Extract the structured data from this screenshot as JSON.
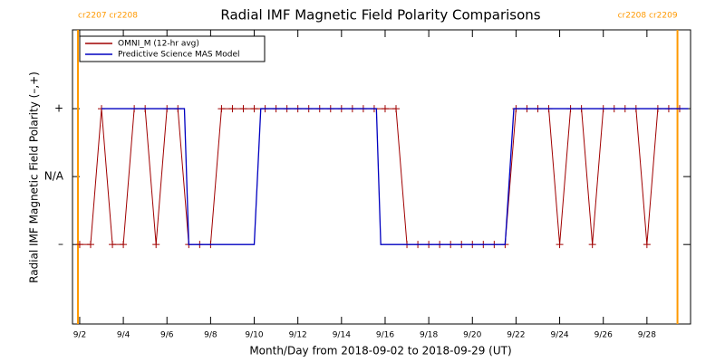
{
  "chart_data": {
    "type": "line",
    "title": "Radial IMF Magnetic Field Polarity Comparisons",
    "x_label": "Month/Day from 2018-09-02 to 2018-09-29 (UT)",
    "y_label": "Radial IMF Magnetic Field Polarity (–,+)",
    "xlim": [
      1.67,
      30
    ],
    "ylim": [
      -2.17,
      2.16
    ],
    "xticks": [
      {
        "value": 2,
        "label": "9/2"
      },
      {
        "value": 4,
        "label": "9/4"
      },
      {
        "value": 6,
        "label": "9/6"
      },
      {
        "value": 8,
        "label": "9/8"
      },
      {
        "value": 10,
        "label": "9/10"
      },
      {
        "value": 12,
        "label": "9/12"
      },
      {
        "value": 14,
        "label": "9/14"
      },
      {
        "value": 16,
        "label": "9/16"
      },
      {
        "value": 18,
        "label": "9/18"
      },
      {
        "value": 20,
        "label": "9/20"
      },
      {
        "value": 22,
        "label": "9/22"
      },
      {
        "value": 24,
        "label": "9/24"
      },
      {
        "value": 26,
        "label": "9/26"
      },
      {
        "value": 28,
        "label": "9/28"
      }
    ],
    "yticks": [
      {
        "value": -1,
        "label": "–"
      },
      {
        "value": 0,
        "label": "N/A"
      },
      {
        "value": 1,
        "label": "+"
      }
    ],
    "legend": "upper left",
    "boundaries": [
      {
        "x": 1.92,
        "label": "cr2207 cr2208",
        "color": "#ff9900"
      },
      {
        "x": 29.4,
        "label": "cr2208 cr2209",
        "color": "#ff9900"
      }
    ],
    "series": [
      {
        "name": "OMNI_M (12-hr avg)",
        "color": "#a00000",
        "marker": "+",
        "x": [
          2,
          2.5,
          3,
          3.5,
          4,
          4.5,
          5,
          5.5,
          6,
          6.5,
          7,
          7.5,
          8,
          8.5,
          9,
          9.5,
          10,
          10.5,
          11,
          11.5,
          12,
          12.5,
          13,
          13.5,
          14,
          14.5,
          15,
          15.5,
          16,
          16.5,
          17,
          17.5,
          18,
          18.5,
          19,
          19.5,
          20,
          20.5,
          21,
          21.5,
          22,
          22.5,
          23,
          23.5,
          24,
          24.5,
          25,
          25.5,
          26,
          26.5,
          27,
          27.5,
          28,
          28.5,
          29,
          29.5
        ],
        "values": [
          -1,
          -1,
          1,
          -1,
          -1,
          1,
          1,
          -1,
          1,
          1,
          -1,
          -1,
          -1,
          1,
          1,
          1,
          1,
          1,
          1,
          1,
          1,
          1,
          1,
          1,
          1,
          1,
          1,
          1,
          1,
          1,
          -1,
          -1,
          -1,
          -1,
          -1,
          -1,
          -1,
          -1,
          -1,
          -1,
          1,
          1,
          1,
          1,
          -1,
          1,
          1,
          -1,
          1,
          1,
          1,
          1,
          -1,
          1,
          1,
          1
        ]
      },
      {
        "name": "Predictive Science MAS Model",
        "color": "#0000c0",
        "x": [
          3.0,
          6.8,
          7.0,
          10.0,
          10.3,
          15.6,
          15.8,
          21.5,
          21.9,
          29.9
        ],
        "values": [
          1,
          1,
          -1,
          -1,
          1,
          1,
          -1,
          -1,
          1,
          1
        ]
      }
    ]
  }
}
